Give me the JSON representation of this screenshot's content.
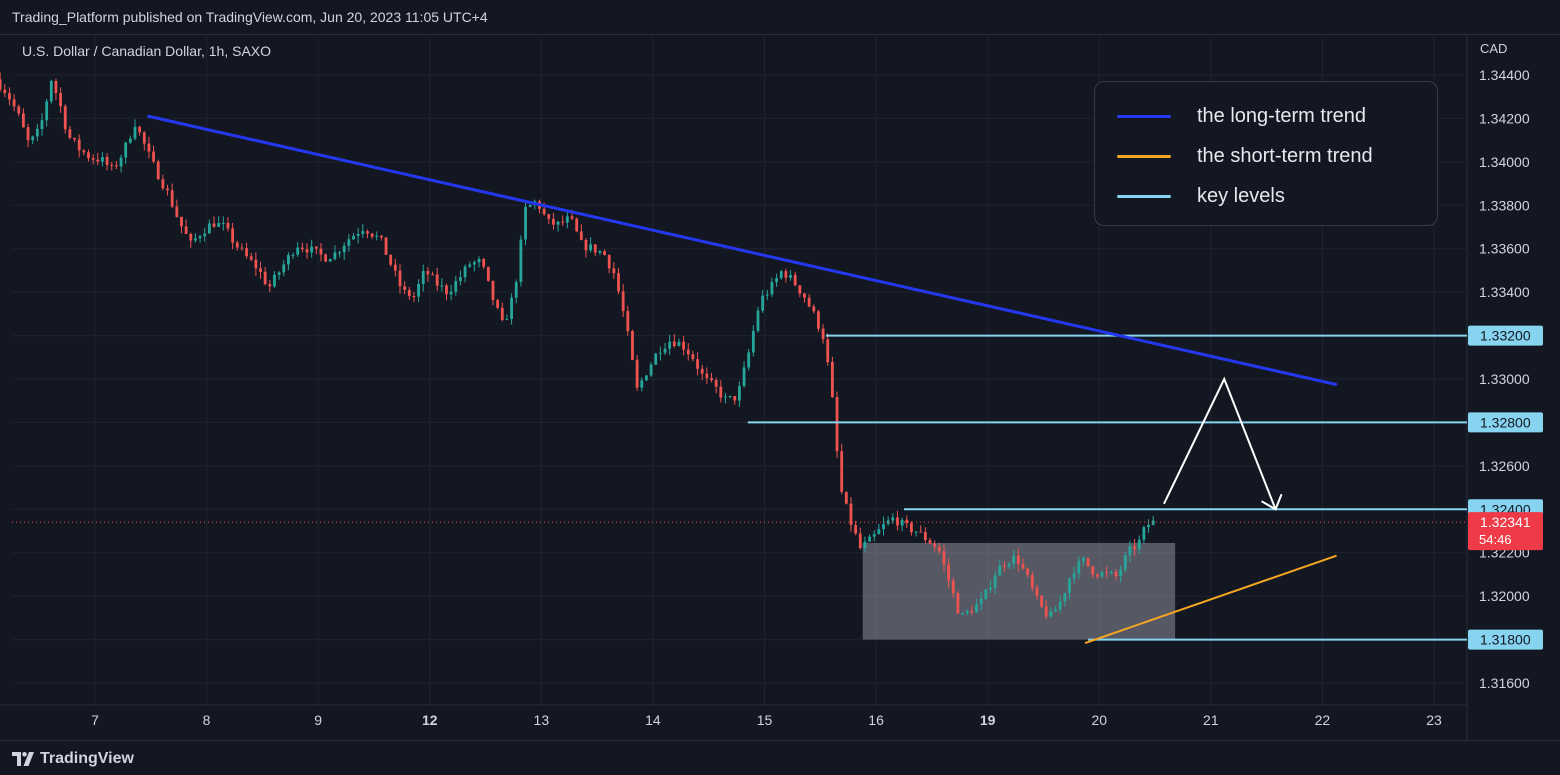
{
  "header": {
    "publisher_line": "Trading_Platform published on TradingView.com, Jun 20, 2023 11:05 UTC+4"
  },
  "footer": {
    "brand": "TradingView",
    "logo_icon": "tradingview-logo-icon"
  },
  "chart_data": {
    "type": "candlestick",
    "title": "U.S. Dollar / Canadian Dollar, 1h, SAXO",
    "ylabel": "CAD",
    "ylim": [
      1.3155,
      1.3453
    ],
    "y_ticks": [
      "1.34400",
      "1.34200",
      "1.34000",
      "1.33800",
      "1.33600",
      "1.33400",
      "1.33200",
      "1.33000",
      "1.32800",
      "1.32600",
      "1.32400",
      "1.32200",
      "1.32000",
      "1.31800",
      "1.31600"
    ],
    "x_ticks": [
      {
        "label": "7",
        "day": 7,
        "bold": false
      },
      {
        "label": "8",
        "day": 8,
        "bold": false
      },
      {
        "label": "9",
        "day": 9,
        "bold": false
      },
      {
        "label": "12",
        "day": 10,
        "bold": true
      },
      {
        "label": "13",
        "day": 11,
        "bold": false
      },
      {
        "label": "14",
        "day": 12,
        "bold": false
      },
      {
        "label": "15",
        "day": 13,
        "bold": false
      },
      {
        "label": "16",
        "day": 14,
        "bold": false
      },
      {
        "label": "19",
        "day": 15,
        "bold": true
      },
      {
        "label": "20",
        "day": 16,
        "bold": false
      },
      {
        "label": "21",
        "day": 17,
        "bold": false
      },
      {
        "label": "22",
        "day": 18,
        "bold": false
      },
      {
        "label": "23",
        "day": 19,
        "bold": false
      }
    ],
    "last_price": {
      "value": 1.32341,
      "label": "1.32341",
      "countdown": "54:46"
    },
    "trendlines": [
      {
        "name": "the long-term trend",
        "color": "#2438f0",
        "from": [
          7.48,
          1.3421
        ],
        "to": [
          18.12,
          1.32975
        ]
      },
      {
        "name": "the short-term trend",
        "color": "#f5a623",
        "from": [
          15.88,
          1.31785
        ],
        "to": [
          18.12,
          1.32185
        ]
      }
    ],
    "key_levels": [
      {
        "price": 1.332,
        "label": "1.33200",
        "start_day": 13.55
      },
      {
        "price": 1.328,
        "label": "1.32800",
        "start_day": 12.85
      },
      {
        "price": 1.324,
        "label": "1.32400",
        "start_day": 14.25
      },
      {
        "price": 1.318,
        "label": "1.31800",
        "start_day": 15.9
      }
    ],
    "zone": {
      "x0": 13.88,
      "x1": 16.68,
      "y_top": 1.32245,
      "y_bottom": 1.318
    },
    "projection_path": [
      [
        16.58,
        1.32425
      ],
      [
        17.12,
        1.33
      ],
      [
        17.58,
        1.324
      ]
    ],
    "legend": [
      {
        "label": "the long-term trend",
        "color": "#2438f0"
      },
      {
        "label": "the short-term trend",
        "color": "#f5a623"
      },
      {
        "label": "key levels",
        "color": "#86d4ef"
      }
    ],
    "ohlc_anchors": [
      [
        6.15,
        1.3438
      ],
      [
        6.25,
        1.3432
      ],
      [
        6.35,
        1.3422
      ],
      [
        6.45,
        1.3408
      ],
      [
        6.55,
        1.3415
      ],
      [
        6.65,
        1.3438
      ],
      [
        6.72,
        1.3428
      ],
      [
        6.8,
        1.3412
      ],
      [
        6.9,
        1.3406
      ],
      [
        7.0,
        1.3402
      ],
      [
        7.1,
        1.3401
      ],
      [
        7.2,
        1.3396
      ],
      [
        7.3,
        1.3405
      ],
      [
        7.4,
        1.3418
      ],
      [
        7.55,
        1.34
      ],
      [
        7.7,
        1.3385
      ],
      [
        7.8,
        1.3372
      ],
      [
        7.9,
        1.3362
      ],
      [
        8.0,
        1.3368
      ],
      [
        8.1,
        1.3372
      ],
      [
        8.2,
        1.337
      ],
      [
        8.3,
        1.3362
      ],
      [
        8.4,
        1.3356
      ],
      [
        8.5,
        1.3351
      ],
      [
        8.6,
        1.3342
      ],
      [
        8.75,
        1.3354
      ],
      [
        8.85,
        1.3362
      ],
      [
        8.95,
        1.336
      ],
      [
        9.1,
        1.3356
      ],
      [
        9.2,
        1.3358
      ],
      [
        9.3,
        1.3364
      ],
      [
        9.45,
        1.337
      ],
      [
        9.6,
        1.3364
      ],
      [
        9.7,
        1.3352
      ],
      [
        9.8,
        1.334
      ],
      [
        9.9,
        1.3338
      ],
      [
        10.0,
        1.335
      ],
      [
        10.1,
        1.3344
      ],
      [
        10.2,
        1.334
      ],
      [
        10.3,
        1.3346
      ],
      [
        10.4,
        1.3353
      ],
      [
        10.5,
        1.3354
      ],
      [
        10.6,
        1.3338
      ],
      [
        10.7,
        1.3324
      ],
      [
        10.8,
        1.334
      ],
      [
        10.9,
        1.3378
      ],
      [
        11.0,
        1.3382
      ],
      [
        11.1,
        1.3372
      ],
      [
        11.2,
        1.3371
      ],
      [
        11.3,
        1.3374
      ],
      [
        11.4,
        1.3362
      ],
      [
        11.5,
        1.336
      ],
      [
        11.6,
        1.3358
      ],
      [
        11.7,
        1.3348
      ],
      [
        11.8,
        1.3325
      ],
      [
        11.9,
        1.3295
      ],
      [
        12.0,
        1.3305
      ],
      [
        12.1,
        1.3314
      ],
      [
        12.2,
        1.3318
      ],
      [
        12.3,
        1.3316
      ],
      [
        12.4,
        1.331
      ],
      [
        12.5,
        1.33
      ],
      [
        12.6,
        1.3296
      ],
      [
        12.7,
        1.329
      ],
      [
        12.8,
        1.3292
      ],
      [
        12.9,
        1.3312
      ],
      [
        13.0,
        1.3336
      ],
      [
        13.1,
        1.3342
      ],
      [
        13.2,
        1.335
      ],
      [
        13.3,
        1.3345
      ],
      [
        13.4,
        1.3338
      ],
      [
        13.5,
        1.3328
      ],
      [
        13.58,
        1.3318
      ],
      [
        13.65,
        1.329
      ],
      [
        13.72,
        1.325
      ],
      [
        13.8,
        1.3236
      ],
      [
        13.9,
        1.3222
      ],
      [
        14.0,
        1.3226
      ],
      [
        14.1,
        1.3232
      ],
      [
        14.2,
        1.3236
      ],
      [
        14.3,
        1.3232
      ],
      [
        14.4,
        1.323
      ],
      [
        14.5,
        1.3226
      ],
      [
        14.6,
        1.3222
      ],
      [
        14.7,
        1.3206
      ],
      [
        14.8,
        1.319
      ],
      [
        14.9,
        1.3194
      ],
      [
        15.0,
        1.3198
      ],
      [
        15.1,
        1.321
      ],
      [
        15.2,
        1.3216
      ],
      [
        15.3,
        1.3218
      ],
      [
        15.4,
        1.3208
      ],
      [
        15.5,
        1.3196
      ],
      [
        15.6,
        1.319
      ],
      [
        15.7,
        1.3198
      ],
      [
        15.8,
        1.3212
      ],
      [
        15.9,
        1.3216
      ],
      [
        16.0,
        1.3211
      ],
      [
        16.1,
        1.321
      ],
      [
        16.2,
        1.3209
      ],
      [
        16.3,
        1.322
      ],
      [
        16.4,
        1.3225
      ],
      [
        16.45,
        1.3231
      ],
      [
        16.5,
        1.3234
      ]
    ]
  }
}
